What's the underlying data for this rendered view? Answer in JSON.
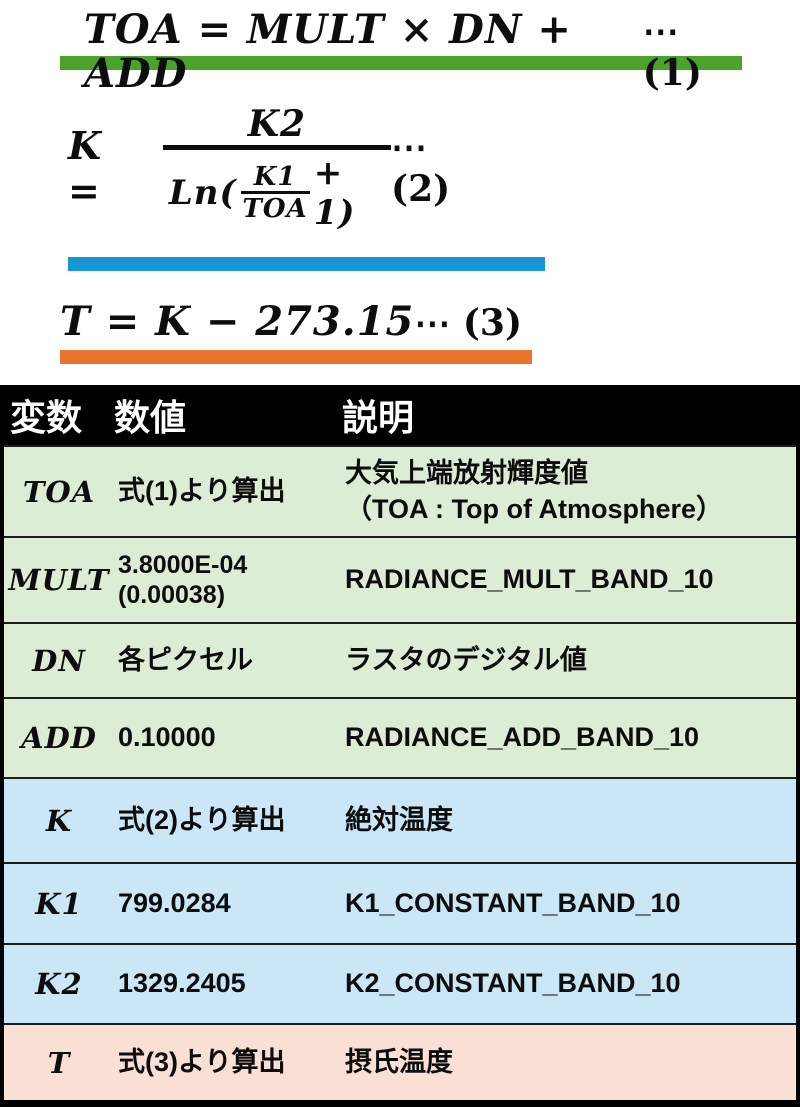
{
  "colors": {
    "page_bg": "#ffffff",
    "text": "#0d0d0d",
    "green_bar": "#4ca32c",
    "blue_bar": "#1697d4",
    "orange_bar": "#e8742e",
    "header_bg": "#000000",
    "header_text": "#ffffff",
    "green_row": "#dcecd5",
    "blue_row": "#cbe7f7",
    "pink_row": "#fadfd4"
  },
  "equations": [
    {
      "text": "TOA = MULT × DN + ADD",
      "label": "⋯ (1)"
    },
    {
      "lhs": "K  =",
      "num": "K2",
      "den_prefix": "Ln(",
      "inner_num": "K1",
      "inner_den": "TOA",
      "den_suffix": "+ 1)",
      "label": "⋯ (2)"
    },
    {
      "text": "T  = K − 273.15",
      "label": "⋯ (3)"
    }
  ],
  "table": {
    "headers": [
      "変数",
      "数値",
      "説明"
    ],
    "rows": [
      {
        "var": "TOA",
        "value": "式(1)より算出",
        "desc": "大気上端放射輝度値\n（TOA : Top of Atmosphere）",
        "group": "green"
      },
      {
        "var": "MULT",
        "value": "3.8000E-04\n(0.00038)",
        "desc": "RADIANCE_MULT_BAND_10",
        "group": "green"
      },
      {
        "var": "DN",
        "value": "各ピクセル",
        "desc": "ラスタのデジタル値",
        "group": "green"
      },
      {
        "var": "ADD",
        "value": "0.10000",
        "desc": "RADIANCE_ADD_BAND_10",
        "group": "green"
      },
      {
        "var": "K",
        "value": "式(2)より算出",
        "desc": "絶対温度",
        "group": "blue"
      },
      {
        "var": "K1",
        "value": "799.0284",
        "desc": "K1_CONSTANT_BAND_10",
        "group": "blue"
      },
      {
        "var": "K2",
        "value": "1329.2405",
        "desc": "K2_CONSTANT_BAND_10",
        "group": "blue"
      },
      {
        "var": "T",
        "value": "式(3)より算出",
        "desc": "摂氏温度",
        "group": "pink"
      }
    ]
  }
}
